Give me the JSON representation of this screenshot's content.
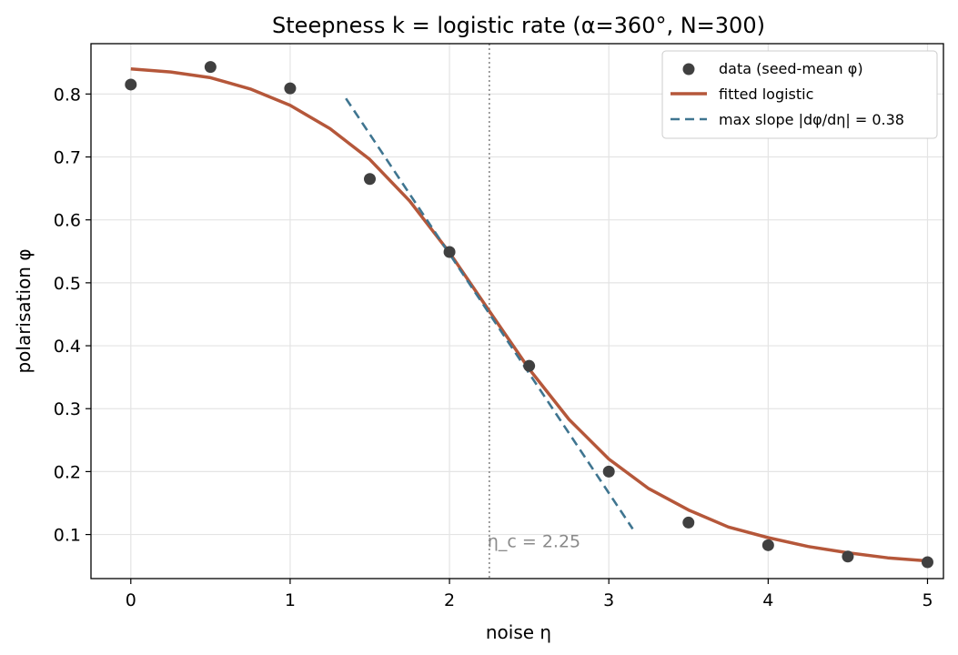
{
  "chart_data": {
    "type": "scatter",
    "title": "Steepness k = logistic rate  (α=360°, N=300)",
    "xlabel": "noise η",
    "ylabel": "polarisation φ",
    "xlim": [
      -0.25,
      5.1
    ],
    "ylim": [
      0.03,
      0.88
    ],
    "xticks": [
      0,
      1,
      2,
      3,
      4,
      5
    ],
    "yticks": [
      0.1,
      0.2,
      0.3,
      0.4,
      0.5,
      0.6,
      0.7,
      0.8
    ],
    "grid": true,
    "legend_position": "top-right",
    "series": [
      {
        "name": "data (seed-mean φ)",
        "type": "scatter",
        "color": "#404040",
        "x": [
          0,
          0.5,
          1,
          1.5,
          2,
          2.5,
          3,
          3.5,
          4,
          4.5,
          5
        ],
        "y": [
          0.815,
          0.843,
          0.809,
          0.665,
          0.549,
          0.368,
          0.2,
          0.119,
          0.083,
          0.065,
          0.056
        ]
      },
      {
        "name": "fitted logistic",
        "type": "line",
        "color": "#b5573a",
        "x": [
          0,
          0.25,
          0.5,
          0.75,
          1,
          1.25,
          1.5,
          1.75,
          2,
          2.25,
          2.5,
          2.75,
          3,
          3.25,
          3.5,
          3.75,
          4,
          4.25,
          4.5,
          4.75,
          5
        ],
        "y": [
          0.84,
          0.835,
          0.826,
          0.808,
          0.782,
          0.745,
          0.696,
          0.63,
          0.548,
          0.455,
          0.363,
          0.283,
          0.22,
          0.173,
          0.139,
          0.112,
          0.095,
          0.081,
          0.071,
          0.063,
          0.058
        ]
      },
      {
        "name": "max slope |dφ/dη| = 0.38",
        "type": "dashed-line",
        "color": "#3f7590",
        "x": [
          1.35,
          3.15
        ],
        "y": [
          0.793,
          0.109
        ]
      }
    ],
    "vline": {
      "x": 2.25,
      "style": "dotted",
      "color": "#888888"
    },
    "annotation": {
      "text": "η_c = 2.25",
      "x": 2.25,
      "y": 0.09
    }
  }
}
